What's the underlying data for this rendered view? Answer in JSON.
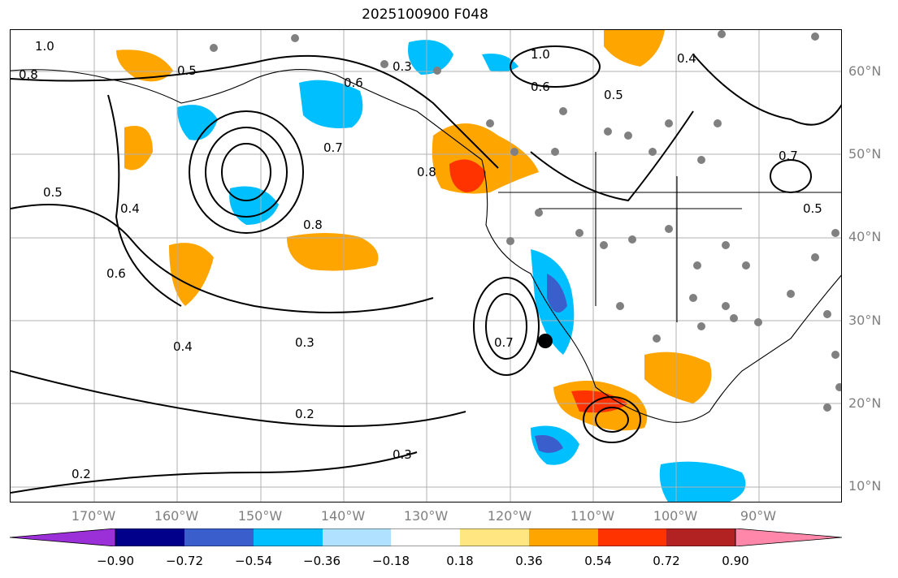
{
  "title": "2025100900 F048",
  "map": {
    "lat_labels": [
      "60°N",
      "50°N",
      "40°N",
      "30°N",
      "20°N",
      "10°N"
    ],
    "lon_labels": [
      "170°W",
      "160°W",
      "150°W",
      "140°W",
      "130°W",
      "120°W",
      "110°W",
      "100°W",
      "90°W"
    ],
    "contour_labels": [
      "0.2",
      "0.2",
      "0.3",
      "0.3",
      "0.3",
      "0.4",
      "0.4",
      "0.4",
      "0.5",
      "0.5",
      "0.5",
      "0.5",
      "0.6",
      "0.6",
      "0.6",
      "0.7",
      "0.7",
      "0.7",
      "0.8",
      "0.8",
      "0.8",
      "1.0",
      "1.0"
    ]
  },
  "colorbar": {
    "ticks": [
      "−0.90",
      "−0.72",
      "−0.54",
      "−0.36",
      "−0.18",
      "0.18",
      "0.36",
      "0.54",
      "0.72",
      "0.90"
    ],
    "colors": [
      "#9b30d8",
      "#00008b",
      "#3a5fcd",
      "#00bfff",
      "#b0e2ff",
      "#ffffff",
      "#ffe680",
      "#ffa500",
      "#ff3300",
      "#b22222",
      "#ff88aa"
    ]
  },
  "colors": {
    "lat_lon_labels": "#808080",
    "grid": "#b0b0b0"
  }
}
